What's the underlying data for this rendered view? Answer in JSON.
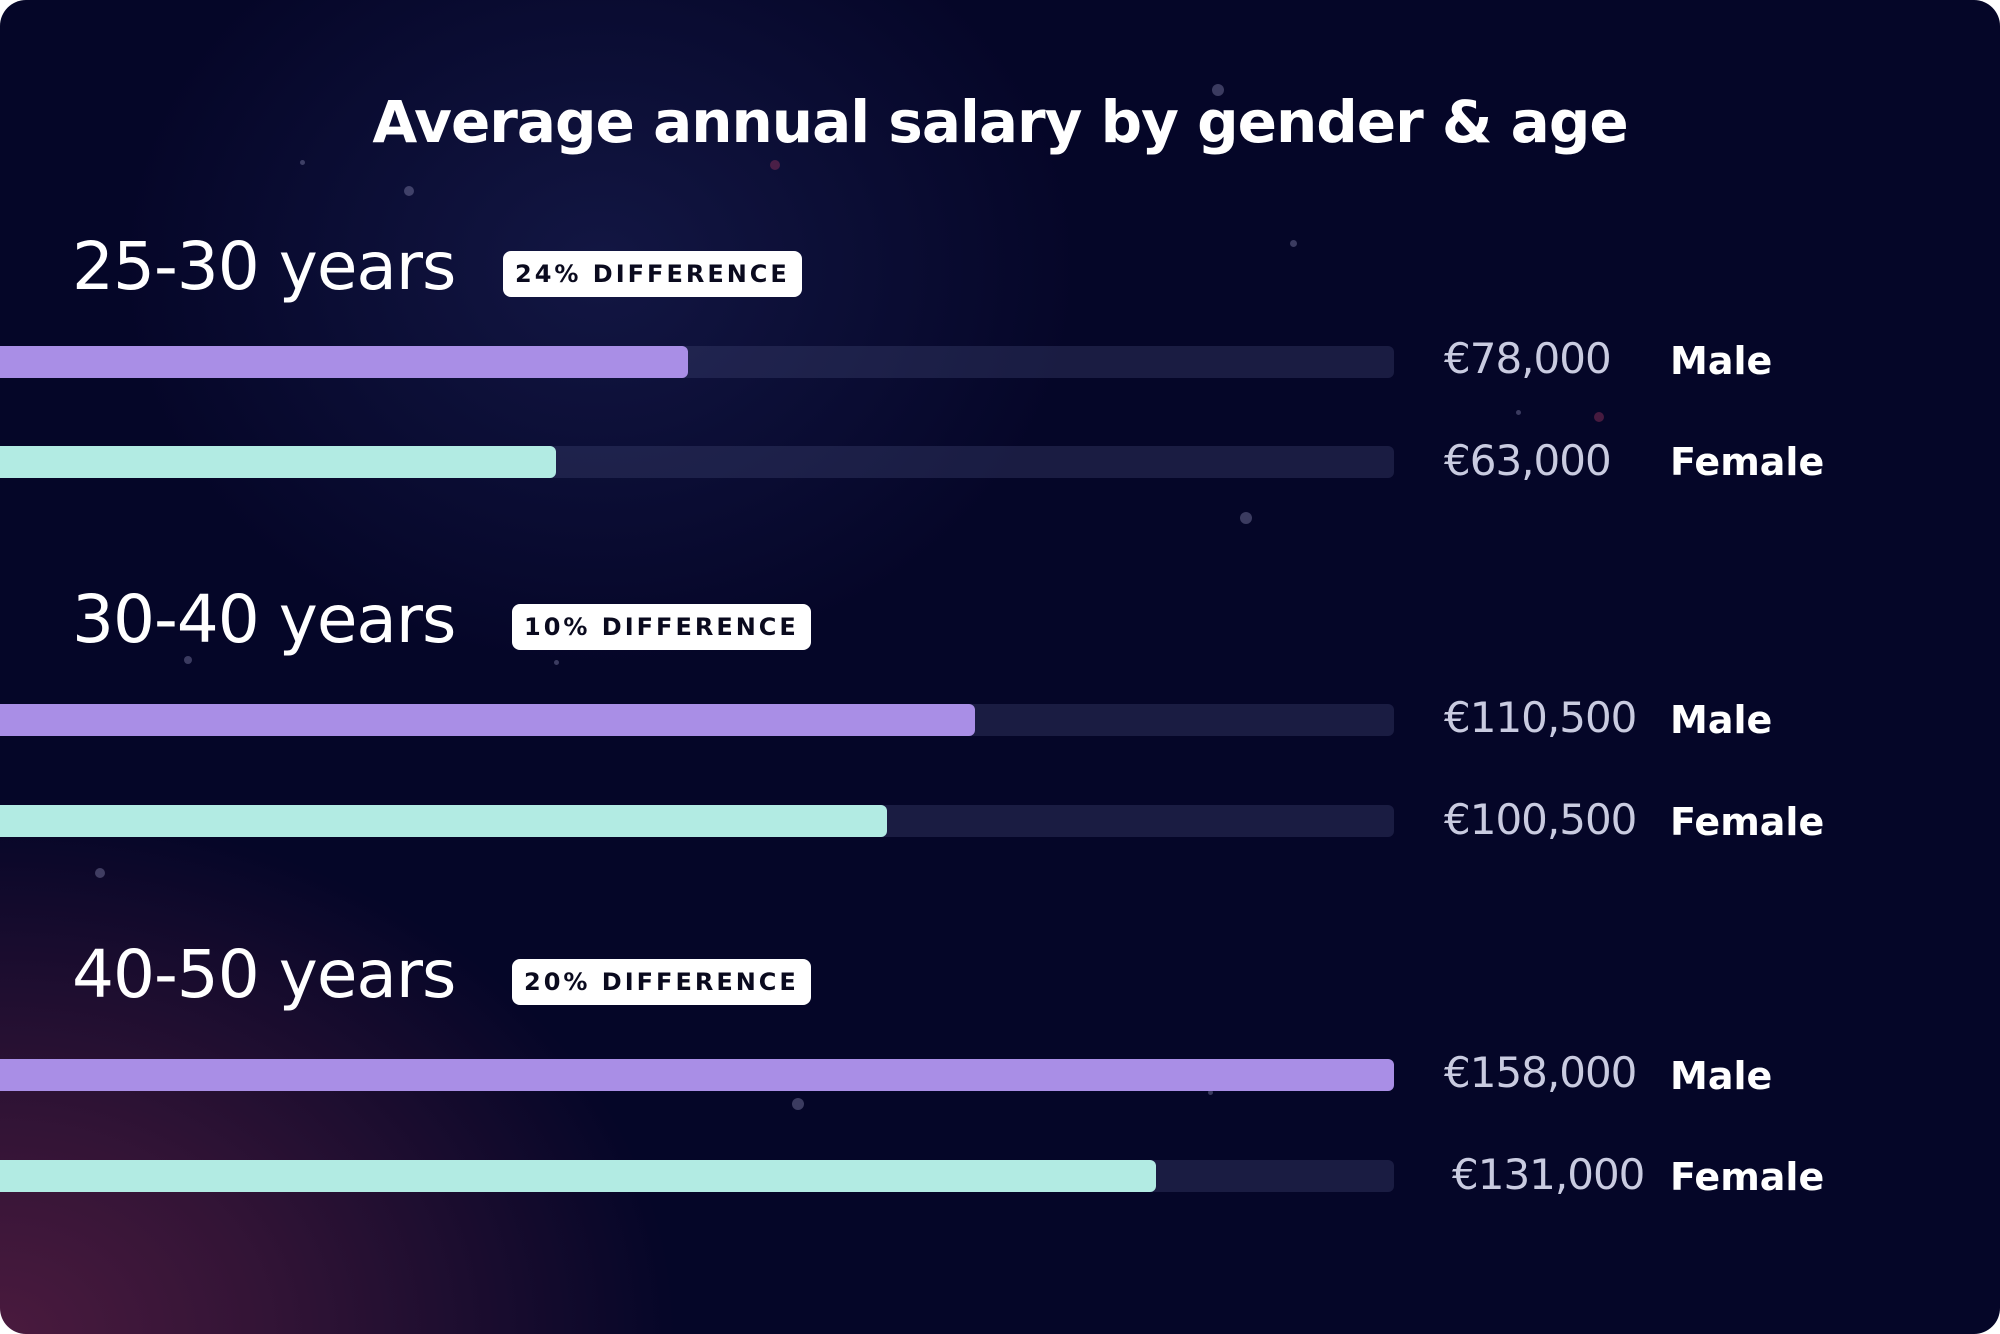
{
  "colors": {
    "male_bar": "#a98ee6",
    "female_bar": "#b2ebe3",
    "track": "#2a2f55",
    "background": "#050628"
  },
  "chart_data": {
    "type": "bar",
    "orientation": "horizontal",
    "title": "Average annual salary by gender & age",
    "xlim": [
      0,
      158000
    ],
    "groups": [
      {
        "label": "25-30 years",
        "badge": "24% DIFFERENCE",
        "bars": [
          {
            "gender": "Male",
            "value": 78000,
            "value_label": "€78,000"
          },
          {
            "gender": "Female",
            "value": 63000,
            "value_label": "€63,000"
          }
        ]
      },
      {
        "label": "30-40 years",
        "badge": "10% DIFFERENCE",
        "bars": [
          {
            "gender": "Male",
            "value": 110500,
            "value_label": "€110,500"
          },
          {
            "gender": "Female",
            "value": 100500,
            "value_label": "€100,500"
          }
        ]
      },
      {
        "label": "40-50 years",
        "badge": "20% DIFFERENCE",
        "bars": [
          {
            "gender": "Male",
            "value": 158000,
            "value_label": "€158,000"
          },
          {
            "gender": "Female",
            "value": 131000,
            "value_label": "€131,000"
          }
        ]
      }
    ]
  }
}
